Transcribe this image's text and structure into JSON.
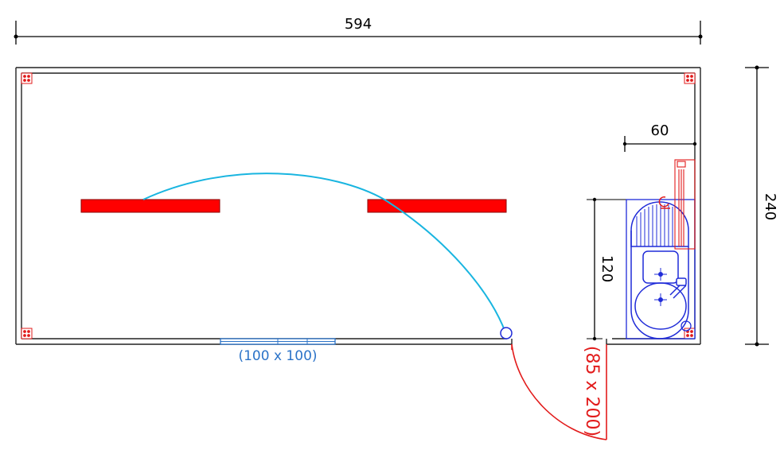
{
  "dimensions": {
    "overall_width": "594",
    "overall_depth": "240",
    "kitchenette_width": "60",
    "kitchenette_length": "120"
  },
  "openings": {
    "window_label": "(100 x 100)",
    "door_label": "(85 x 200)"
  },
  "colors": {
    "wall": "#222222",
    "dimension": "#000000",
    "heater": "#ff0000",
    "sink": "#1f2bd8",
    "window": "#2b73c8",
    "door": "#e21b1b",
    "swing_arc": "#19b5e0"
  },
  "icons": [
    "corner-post-icon",
    "heater-icon",
    "kitchenette-icon",
    "faucet-icon",
    "drain-icon",
    "water-heater-icon"
  ]
}
